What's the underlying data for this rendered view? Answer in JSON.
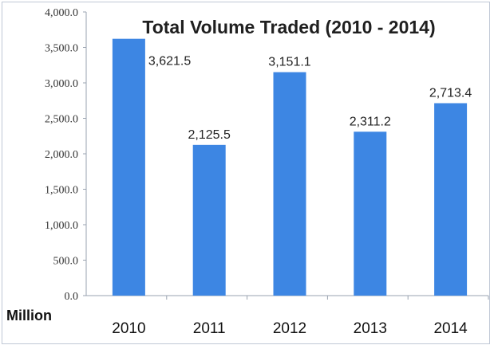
{
  "chart_data": {
    "type": "bar",
    "title": "Total Volume Traded (2010 - 2014)",
    "xlabel": "",
    "ylabel": "",
    "unit_label": "Million",
    "categories": [
      "2010",
      "2011",
      "2012",
      "2013",
      "2014"
    ],
    "values": [
      3621.5,
      2125.5,
      3151.1,
      2311.2,
      2713.4
    ],
    "data_labels": [
      "3,621.5",
      "2,125.5",
      "3,151.1",
      "2,311.2",
      "2,713.4"
    ],
    "ylim": [
      0,
      4000
    ],
    "yticks": [
      0,
      500,
      1000,
      1500,
      2000,
      2500,
      3000,
      3500,
      4000
    ],
    "ytick_labels": [
      "0.0",
      "500.0",
      "1,000.0",
      "1,500.0",
      "2,000.0",
      "2,500.0",
      "3,000.0",
      "3,500.0",
      "4,000.0"
    ],
    "grid": false,
    "legend": "none",
    "colors": {
      "bar": "#3d86e3",
      "axis": "#9aa3b0"
    }
  }
}
